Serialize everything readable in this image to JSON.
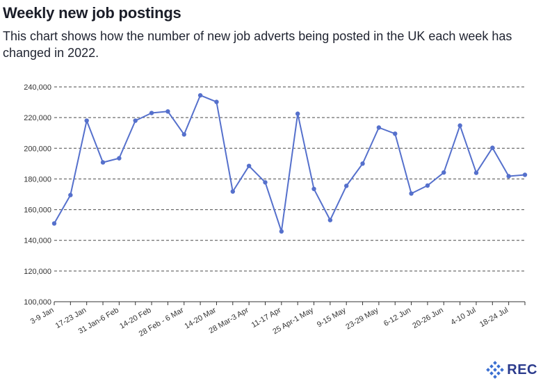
{
  "header": {
    "title": "Weekly new job postings",
    "subtitle": "This chart shows how the number of new job adverts being posted in the UK each week has changed in 2022."
  },
  "brand": {
    "name": "REC",
    "color": "#2a3a8c",
    "dot_color": "#3b6fd1"
  },
  "chart_data": {
    "type": "line",
    "title": "Weekly new job postings",
    "xlabel": "",
    "ylabel": "",
    "ylim": [
      100000,
      240000
    ],
    "yticks": [
      100000,
      120000,
      140000,
      160000,
      180000,
      200000,
      220000,
      240000
    ],
    "ytick_labels": [
      "100,000",
      "120,000",
      "140,000",
      "160,000",
      "180,000",
      "200,000",
      "220,000",
      "240,000"
    ],
    "xtick_labels": [
      "3-9 Jan",
      "17-23 Jan",
      "31 Jan-6 Feb",
      "14-20 Feb",
      "28 Feb - 6 Mar",
      "14-20 Mar",
      "28 Mar-3 Apr",
      "11-17 Apr",
      "25 Apr-1 May",
      "9-15 May",
      "23-29 May",
      "6-12 Jun",
      "20-26 Jun",
      "4-10 Jul",
      "18-24 Jul"
    ],
    "grid": "horizontal dashed",
    "line_color": "#5570cc",
    "series": [
      {
        "name": "New job postings",
        "values": [
          151000,
          169500,
          218000,
          190800,
          193500,
          218000,
          223000,
          224000,
          209000,
          234500,
          230200,
          171800,
          188500,
          177800,
          145800,
          222500,
          173500,
          153200,
          175500,
          190000,
          213500,
          209500,
          170500,
          175700,
          184200,
          214800,
          184000,
          200300,
          181800,
          182700
        ]
      }
    ]
  }
}
